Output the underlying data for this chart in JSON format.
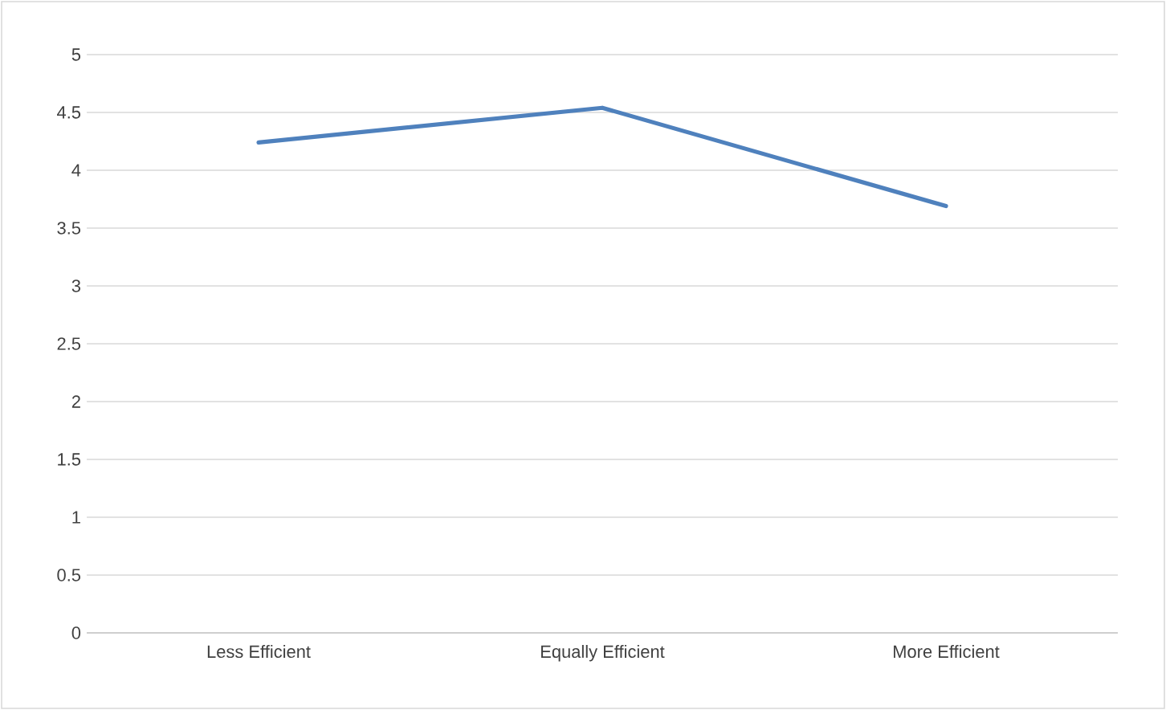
{
  "chart_data": {
    "type": "line",
    "categories": [
      "Less Efficient",
      "Equally Efficient",
      "More Efficient"
    ],
    "series": [
      {
        "color": "#4f81bd",
        "values": [
          4.24,
          4.54,
          3.69
        ]
      }
    ],
    "ylim": [
      0,
      5
    ],
    "yticks": [
      0,
      0.5,
      1,
      1.5,
      2,
      2.5,
      3,
      3.5,
      4,
      4.5,
      5
    ],
    "grid": "y",
    "marker": "none",
    "line_style": "solid"
  }
}
